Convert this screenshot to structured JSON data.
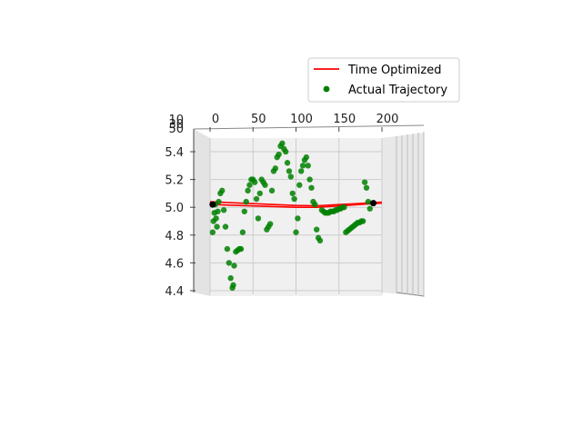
{
  "chart_data": {
    "type": "scatter",
    "projection": "3d",
    "title": "",
    "legend": {
      "placement": "top-right",
      "entries": [
        {
          "label": "Time Optimized",
          "marker": "line",
          "color": "#ff0000"
        },
        {
          "label": "Actual Trajectory",
          "marker": "circle",
          "color": "#008000"
        }
      ]
    },
    "x_axis": {
      "ticks": [
        0,
        50,
        100,
        150,
        200
      ],
      "range": [
        0,
        200
      ]
    },
    "y_axis": {
      "ticks": [
        "10",
        "30",
        "50"
      ],
      "note": "depth axis seen edge-on"
    },
    "z_axis": {
      "ticks": [
        4.4,
        4.6,
        4.8,
        5.0,
        5.2,
        5.4
      ],
      "range": [
        4.4,
        5.45
      ]
    },
    "grid": true,
    "series": [
      {
        "name": "Time Optimized",
        "kind": "line",
        "color": "#ff0000",
        "x": [
          0,
          25,
          50,
          75,
          100,
          125,
          150,
          175,
          200
        ],
        "z": [
          5.02,
          5.015,
          5.01,
          5.005,
          5.0,
          5.0,
          5.01,
          5.02,
          5.03
        ]
      },
      {
        "name": "Actual Trajectory",
        "kind": "scatter",
        "color": "#008000",
        "x": [
          3,
          4,
          5,
          6,
          7,
          8,
          9,
          10,
          12,
          14,
          16,
          18,
          20,
          22,
          24,
          26,
          27,
          28,
          30,
          32,
          34,
          36,
          38,
          40,
          42,
          44,
          46,
          48,
          50,
          52,
          54,
          56,
          58,
          60,
          62,
          64,
          66,
          68,
          70,
          72,
          74,
          76,
          78,
          80,
          82,
          84,
          86,
          88,
          90,
          92,
          94,
          96,
          98,
          100,
          102,
          104,
          106,
          108,
          110,
          112,
          114,
          116,
          118,
          120,
          122,
          124,
          126,
          128,
          130,
          132,
          134,
          136,
          138,
          140,
          142,
          144,
          146,
          148,
          150,
          152,
          154,
          156,
          158,
          160,
          162,
          164,
          166,
          168,
          170,
          172,
          174,
          176,
          178,
          180,
          182,
          184,
          186
        ],
        "z": [
          4.82,
          4.9,
          4.96,
          5.02,
          4.92,
          4.86,
          4.97,
          5.04,
          5.1,
          5.12,
          4.98,
          4.86,
          4.7,
          4.6,
          4.49,
          4.42,
          4.44,
          4.58,
          4.68,
          4.69,
          4.7,
          4.7,
          4.82,
          4.97,
          5.04,
          5.12,
          5.16,
          5.2,
          5.2,
          5.18,
          5.06,
          4.92,
          5.1,
          5.2,
          5.18,
          5.16,
          4.84,
          4.86,
          4.88,
          5.12,
          5.26,
          5.28,
          5.36,
          5.38,
          5.44,
          5.46,
          5.42,
          5.4,
          5.32,
          5.26,
          5.22,
          5.1,
          5.06,
          4.82,
          4.92,
          5.16,
          5.26,
          5.3,
          5.34,
          5.36,
          5.3,
          5.2,
          5.14,
          5.04,
          5.02,
          4.84,
          4.78,
          4.76,
          4.98,
          4.97,
          4.96,
          4.96,
          4.96,
          4.97,
          4.97,
          4.97,
          4.98,
          4.98,
          4.99,
          4.99,
          5.0,
          5.0,
          4.82,
          4.83,
          4.84,
          4.85,
          4.86,
          4.87,
          4.88,
          4.89,
          4.89,
          4.9,
          4.9,
          5.18,
          5.14,
          5.04,
          4.99
        ]
      },
      {
        "name": "",
        "kind": "endpoints",
        "color": "#000000",
        "x": [
          3,
          190
        ],
        "z": [
          5.02,
          5.03
        ]
      }
    ]
  }
}
